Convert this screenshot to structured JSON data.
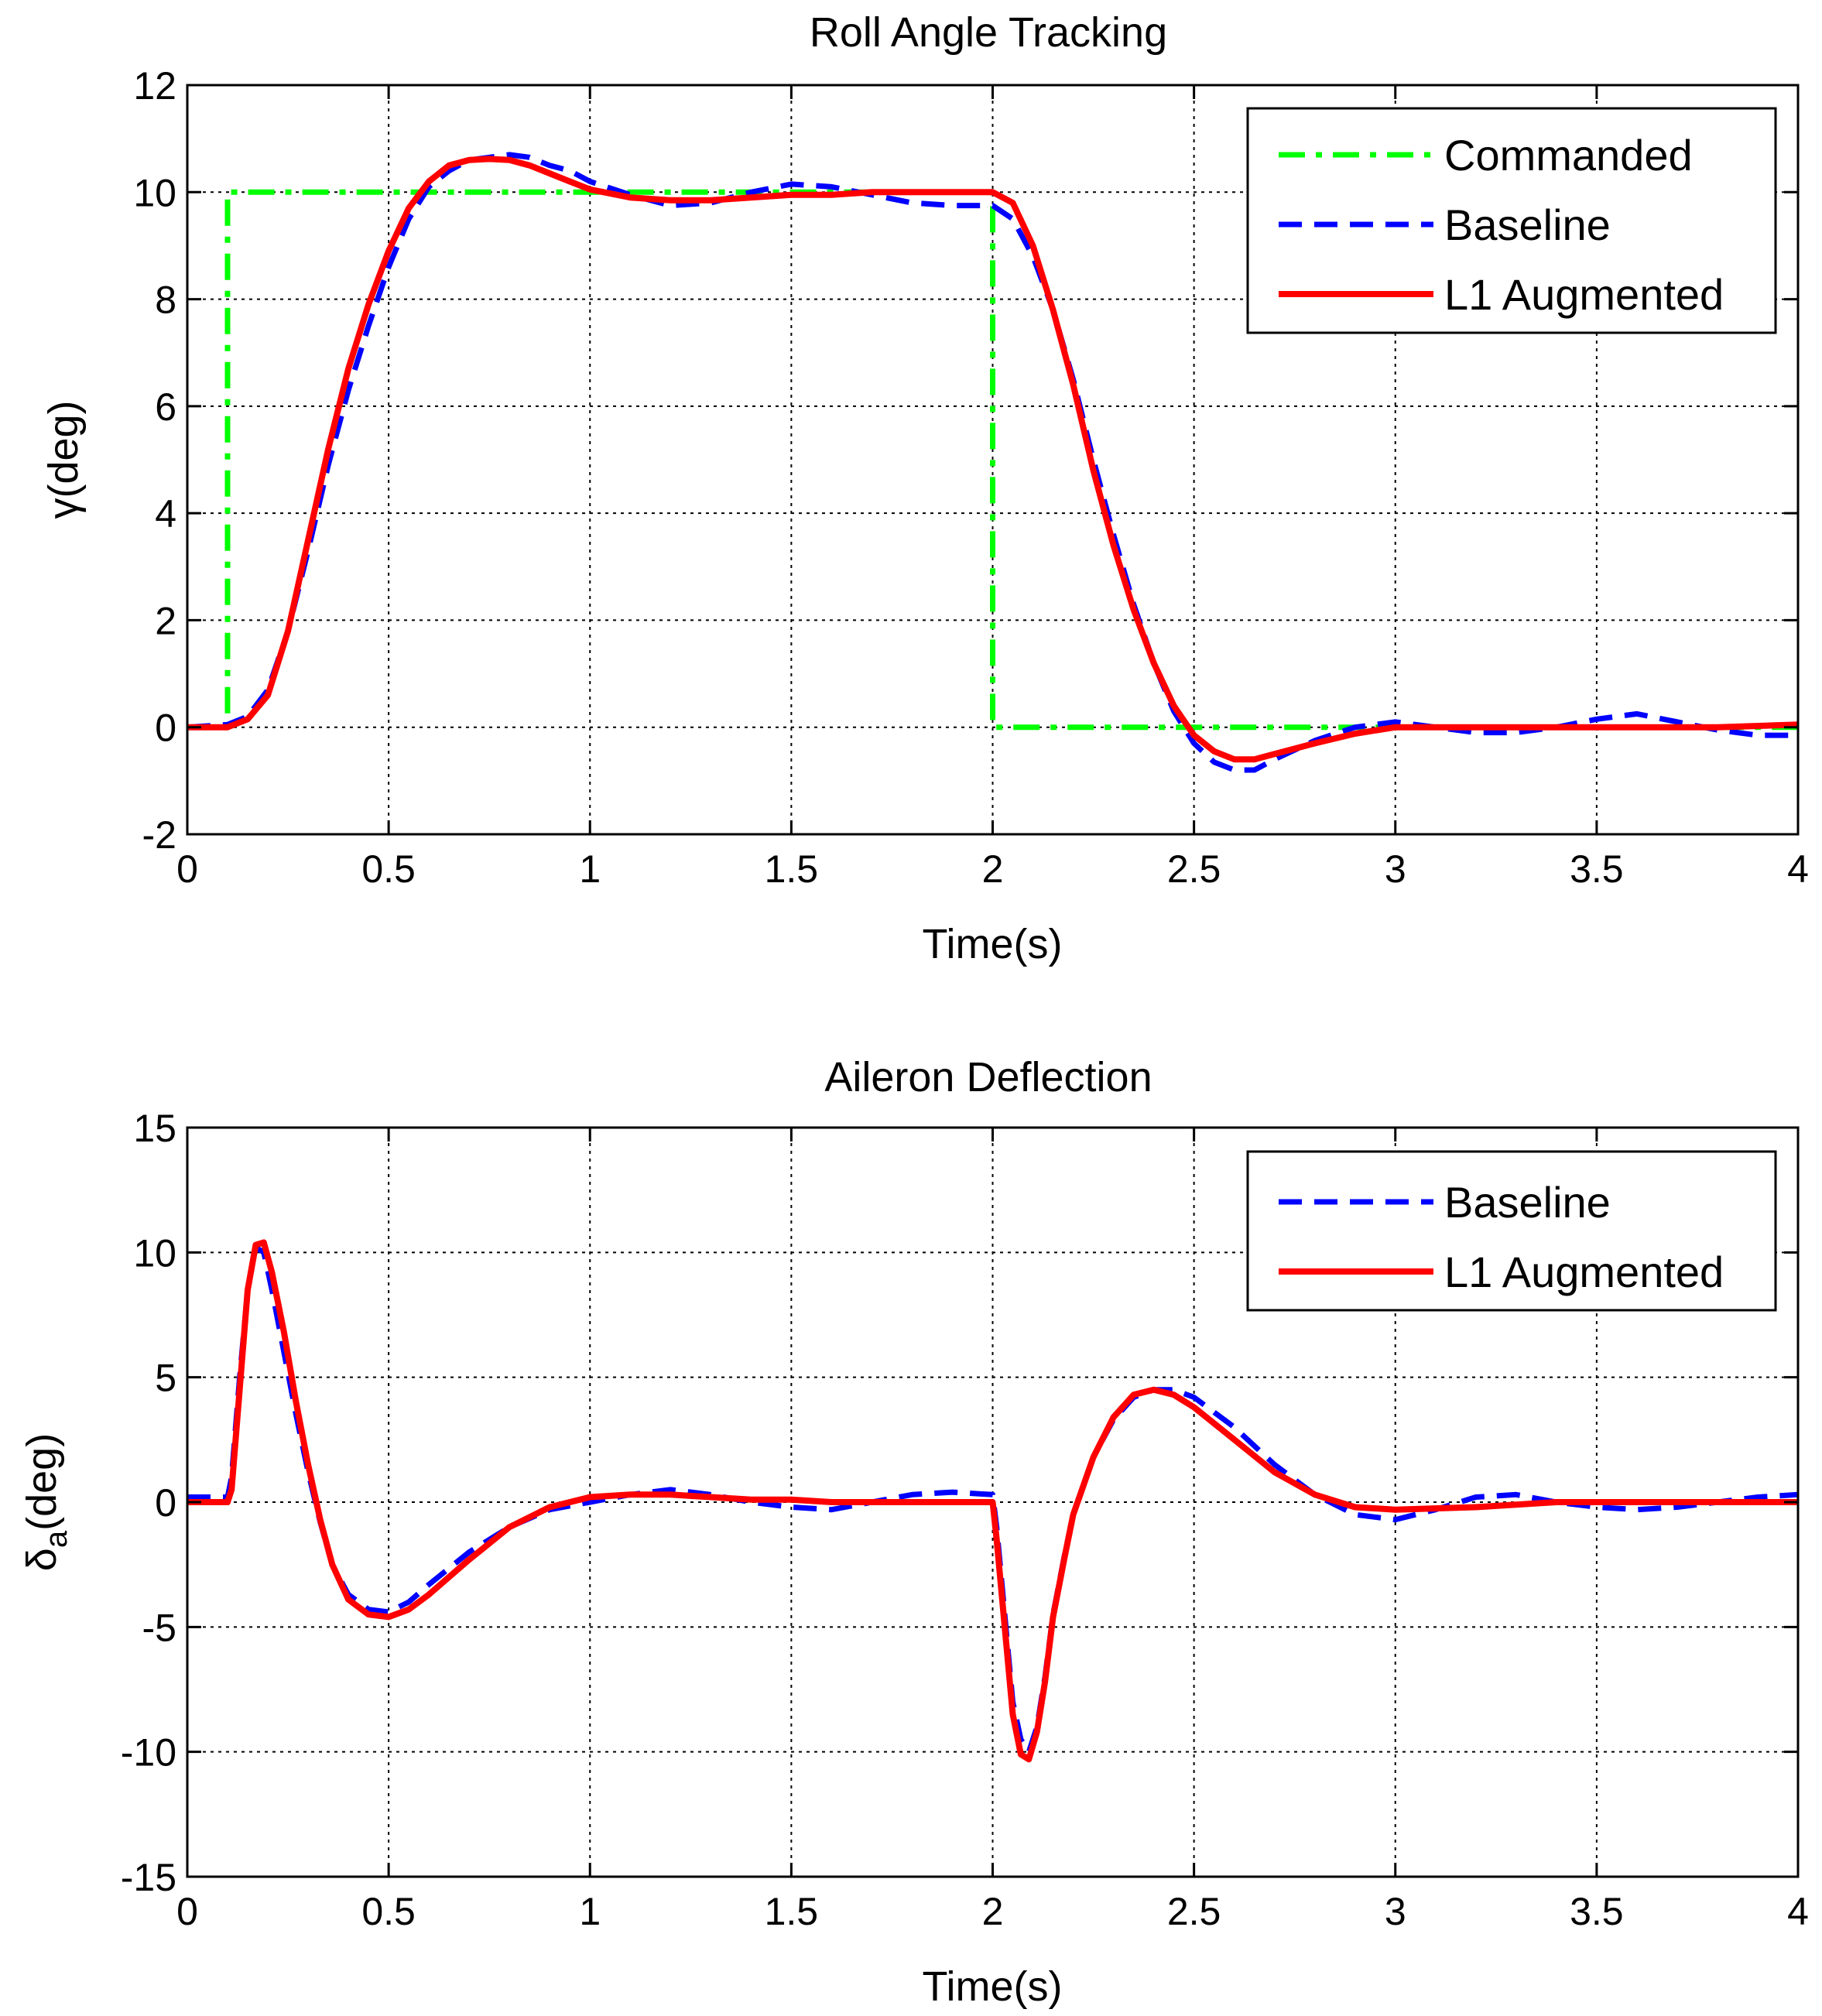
{
  "chart_data": [
    {
      "type": "line",
      "title": "Roll Angle Tracking",
      "xlabel": "Time(s)",
      "ylabel": "γ(deg)",
      "xlim": [
        0,
        4
      ],
      "ylim": [
        -2,
        12
      ],
      "xticks": [
        0,
        0.5,
        1,
        1.5,
        2,
        2.5,
        3,
        3.5,
        4
      ],
      "xtick_labels": [
        "0",
        "0.5",
        "1",
        "1.5",
        "2",
        "2.5",
        "3",
        "3.5",
        "4"
      ],
      "yticks": [
        -2,
        0,
        2,
        4,
        6,
        8,
        10,
        12
      ],
      "ytick_labels": [
        "-2",
        "0",
        "2",
        "4",
        "6",
        "8",
        "10",
        "12"
      ],
      "grid": true,
      "legend_position": "top-right",
      "series": [
        {
          "name": "Commanded",
          "color": "#00ff00",
          "style": "dashdot",
          "x": [
            0,
            0.1,
            0.1,
            2.0,
            2.0,
            4.0
          ],
          "y": [
            0,
            0,
            10,
            10,
            0,
            0
          ]
        },
        {
          "name": "Baseline",
          "color": "#0000ff",
          "style": "dashed",
          "x": [
            0,
            0.1,
            0.15,
            0.2,
            0.25,
            0.3,
            0.35,
            0.4,
            0.45,
            0.5,
            0.55,
            0.6,
            0.65,
            0.7,
            0.75,
            0.8,
            0.85,
            0.9,
            0.95,
            1.0,
            1.1,
            1.2,
            1.3,
            1.4,
            1.5,
            1.6,
            1.7,
            1.8,
            1.9,
            2.0,
            2.05,
            2.1,
            2.15,
            2.2,
            2.25,
            2.3,
            2.35,
            2.4,
            2.45,
            2.5,
            2.55,
            2.6,
            2.65,
            2.7,
            2.8,
            2.9,
            3.0,
            3.1,
            3.2,
            3.3,
            3.4,
            3.5,
            3.6,
            3.7,
            3.8,
            3.9,
            4.0
          ],
          "y": [
            0,
            0.05,
            0.2,
            0.7,
            1.8,
            3.3,
            4.9,
            6.3,
            7.5,
            8.6,
            9.5,
            10.1,
            10.4,
            10.6,
            10.65,
            10.7,
            10.65,
            10.5,
            10.4,
            10.2,
            9.95,
            9.75,
            9.8,
            10.0,
            10.15,
            10.1,
            9.95,
            9.8,
            9.75,
            9.75,
            9.5,
            8.8,
            7.8,
            6.5,
            5.0,
            3.6,
            2.3,
            1.2,
            0.3,
            -0.3,
            -0.65,
            -0.8,
            -0.8,
            -0.6,
            -0.25,
            0.0,
            0.1,
            0.0,
            -0.1,
            -0.1,
            0.0,
            0.15,
            0.25,
            0.1,
            -0.05,
            -0.15,
            -0.15
          ]
        },
        {
          "name": "L1 Augmented",
          "color": "#ff0000",
          "style": "solid",
          "x": [
            0,
            0.1,
            0.15,
            0.2,
            0.25,
            0.3,
            0.35,
            0.4,
            0.45,
            0.5,
            0.55,
            0.6,
            0.65,
            0.7,
            0.75,
            0.8,
            0.85,
            0.9,
            0.95,
            1.0,
            1.1,
            1.2,
            1.3,
            1.4,
            1.5,
            1.6,
            1.7,
            1.8,
            1.9,
            2.0,
            2.05,
            2.1,
            2.15,
            2.2,
            2.25,
            2.3,
            2.35,
            2.4,
            2.45,
            2.5,
            2.55,
            2.6,
            2.65,
            2.7,
            2.8,
            2.9,
            3.0,
            3.2,
            3.4,
            3.6,
            3.8,
            4.0
          ],
          "y": [
            0,
            0.0,
            0.15,
            0.6,
            1.8,
            3.5,
            5.2,
            6.7,
            7.9,
            8.9,
            9.7,
            10.2,
            10.5,
            10.6,
            10.62,
            10.6,
            10.5,
            10.35,
            10.2,
            10.05,
            9.9,
            9.85,
            9.85,
            9.9,
            9.95,
            9.95,
            10.0,
            10.0,
            10.0,
            10.0,
            9.8,
            9.0,
            7.8,
            6.4,
            4.8,
            3.4,
            2.2,
            1.2,
            0.4,
            -0.15,
            -0.45,
            -0.6,
            -0.6,
            -0.5,
            -0.3,
            -0.12,
            0.0,
            0.0,
            0.0,
            0.0,
            0.0,
            0.05
          ]
        }
      ]
    },
    {
      "type": "line",
      "title": "Aileron Deflection",
      "xlabel": "Time(s)",
      "ylabel": "δa(deg)",
      "ylabel_main": "δ",
      "ylabel_sub": "a",
      "ylabel_rest": "(deg)",
      "xlim": [
        0,
        4
      ],
      "ylim": [
        -15,
        15
      ],
      "xticks": [
        0,
        0.5,
        1,
        1.5,
        2,
        2.5,
        3,
        3.5,
        4
      ],
      "xtick_labels": [
        "0",
        "0.5",
        "1",
        "1.5",
        "2",
        "2.5",
        "3",
        "3.5",
        "4"
      ],
      "yticks": [
        -15,
        -10,
        -5,
        0,
        5,
        10,
        15
      ],
      "ytick_labels": [
        "-15",
        "-10",
        "-5",
        "0",
        "5",
        "10",
        "15"
      ],
      "grid": true,
      "legend_position": "top-right",
      "series": [
        {
          "name": "Baseline",
          "color": "#0000ff",
          "style": "dashed",
          "x": [
            0,
            0.1,
            0.11,
            0.13,
            0.15,
            0.17,
            0.19,
            0.21,
            0.24,
            0.27,
            0.3,
            0.33,
            0.36,
            0.4,
            0.45,
            0.5,
            0.55,
            0.6,
            0.7,
            0.8,
            0.9,
            1.0,
            1.1,
            1.2,
            1.3,
            1.4,
            1.5,
            1.6,
            1.7,
            1.8,
            1.9,
            2.0,
            2.01,
            2.03,
            2.05,
            2.07,
            2.09,
            2.11,
            2.13,
            2.15,
            2.18,
            2.2,
            2.25,
            2.3,
            2.35,
            2.4,
            2.45,
            2.5,
            2.6,
            2.7,
            2.8,
            2.9,
            3.0,
            3.1,
            3.2,
            3.3,
            3.4,
            3.5,
            3.6,
            3.7,
            3.8,
            3.9,
            4.0
          ],
          "y": [
            0.2,
            0.2,
            1.0,
            5.0,
            8.5,
            10.2,
            10.0,
            8.5,
            6.0,
            3.5,
            1.2,
            -0.8,
            -2.5,
            -3.7,
            -4.3,
            -4.4,
            -4.0,
            -3.3,
            -2.0,
            -1.0,
            -0.3,
            0.0,
            0.3,
            0.5,
            0.3,
            0.0,
            -0.2,
            -0.3,
            0.0,
            0.3,
            0.4,
            0.3,
            -1.0,
            -4.5,
            -8.0,
            -9.5,
            -10.0,
            -9.0,
            -7.0,
            -4.5,
            -2.0,
            -0.5,
            1.8,
            3.3,
            4.2,
            4.5,
            4.5,
            4.2,
            3.0,
            1.5,
            0.3,
            -0.5,
            -0.7,
            -0.3,
            0.2,
            0.3,
            0.0,
            -0.2,
            -0.3,
            -0.2,
            0.0,
            0.2,
            0.3
          ]
        },
        {
          "name": "L1 Augmented",
          "color": "#ff0000",
          "style": "solid",
          "x": [
            0,
            0.1,
            0.11,
            0.13,
            0.15,
            0.17,
            0.19,
            0.21,
            0.24,
            0.27,
            0.3,
            0.33,
            0.36,
            0.4,
            0.45,
            0.5,
            0.55,
            0.6,
            0.7,
            0.8,
            0.9,
            1.0,
            1.1,
            1.2,
            1.3,
            1.4,
            1.5,
            1.6,
            1.7,
            1.8,
            1.9,
            2.0,
            2.01,
            2.03,
            2.05,
            2.07,
            2.09,
            2.11,
            2.13,
            2.15,
            2.18,
            2.2,
            2.25,
            2.3,
            2.35,
            2.4,
            2.45,
            2.5,
            2.6,
            2.7,
            2.8,
            2.9,
            3.0,
            3.2,
            3.4,
            3.6,
            3.8,
            4.0
          ],
          "y": [
            0,
            0,
            0.5,
            4.5,
            8.5,
            10.3,
            10.4,
            9.2,
            6.8,
            4.0,
            1.5,
            -0.7,
            -2.5,
            -3.9,
            -4.5,
            -4.6,
            -4.3,
            -3.7,
            -2.3,
            -1.0,
            -0.2,
            0.2,
            0.3,
            0.3,
            0.2,
            0.1,
            0.1,
            0.0,
            0.0,
            0.0,
            0.0,
            0.0,
            -1.5,
            -5.0,
            -8.5,
            -10.1,
            -10.3,
            -9.2,
            -7.2,
            -4.6,
            -2.1,
            -0.5,
            1.8,
            3.4,
            4.3,
            4.5,
            4.3,
            3.8,
            2.5,
            1.2,
            0.3,
            -0.2,
            -0.3,
            -0.2,
            0.0,
            0.0,
            0.0,
            0.0
          ]
        }
      ]
    }
  ]
}
